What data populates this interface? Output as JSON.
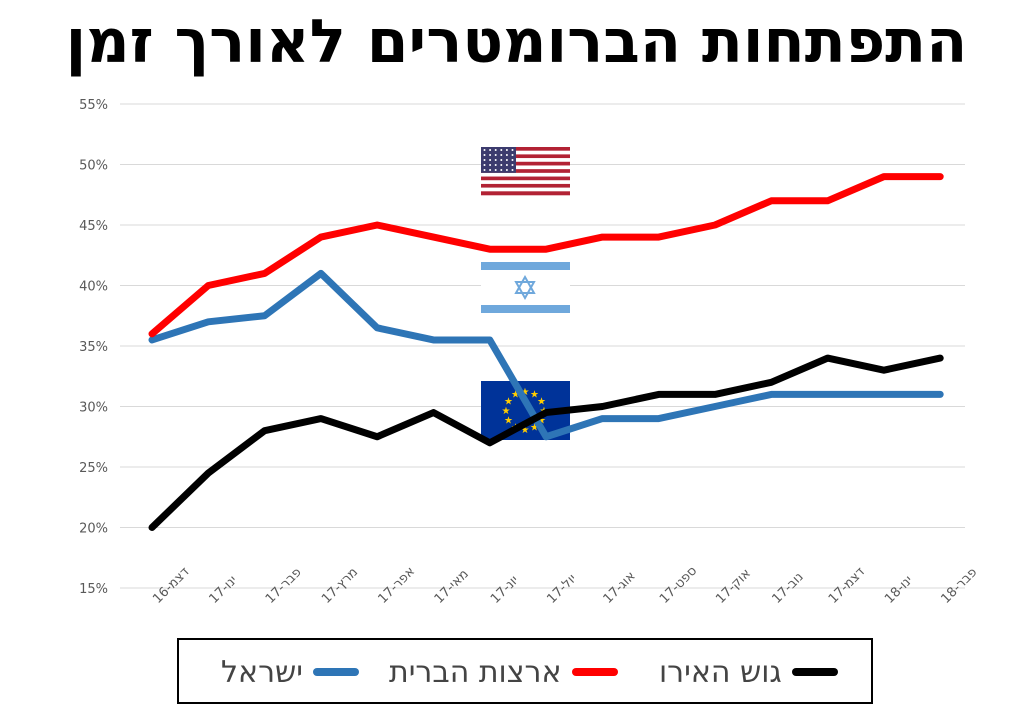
{
  "title": "התפתחות הברומטרים לאורך זמן",
  "flags": [
    {
      "name": "us-flag-icon"
    },
    {
      "name": "israel-flag-icon"
    },
    {
      "name": "eu-flag-icon"
    }
  ],
  "chart_data": {
    "type": "line",
    "categories": [
      "דצמ-16",
      "ינו-17",
      "פבר-17",
      "מרץ-17",
      "אפר-17",
      "מאי-17",
      "יונ-17",
      "יול-17",
      "אוג-17",
      "ספט-17",
      "אוק-17",
      "נוב-17",
      "דצמ-17",
      "ינו-18",
      "פבר-18"
    ],
    "ylim": [
      15,
      55
    ],
    "yticks": [
      "15%",
      "20%",
      "25%",
      "30%",
      "35%",
      "40%",
      "45%",
      "50%",
      "55%"
    ],
    "grid": true,
    "legend_position": "bottom",
    "series": [
      {
        "name": "ישראל",
        "color": "#2E75B6",
        "values": [
          35.5,
          37,
          37.5,
          41,
          36.5,
          35.5,
          35.5,
          27.5,
          29,
          29,
          30,
          31,
          31,
          31,
          31
        ]
      },
      {
        "name": "ארצות הברית",
        "color": "#FF0000",
        "values": [
          36,
          40,
          41,
          44,
          45,
          44,
          43,
          43,
          44,
          44,
          45,
          47,
          47,
          49,
          49
        ]
      },
      {
        "name": "גוש האירו",
        "color": "#000000",
        "values": [
          20,
          24.5,
          28,
          29,
          27.5,
          29.5,
          27,
          29.5,
          30,
          31,
          31,
          32,
          34,
          33,
          34
        ]
      }
    ]
  }
}
